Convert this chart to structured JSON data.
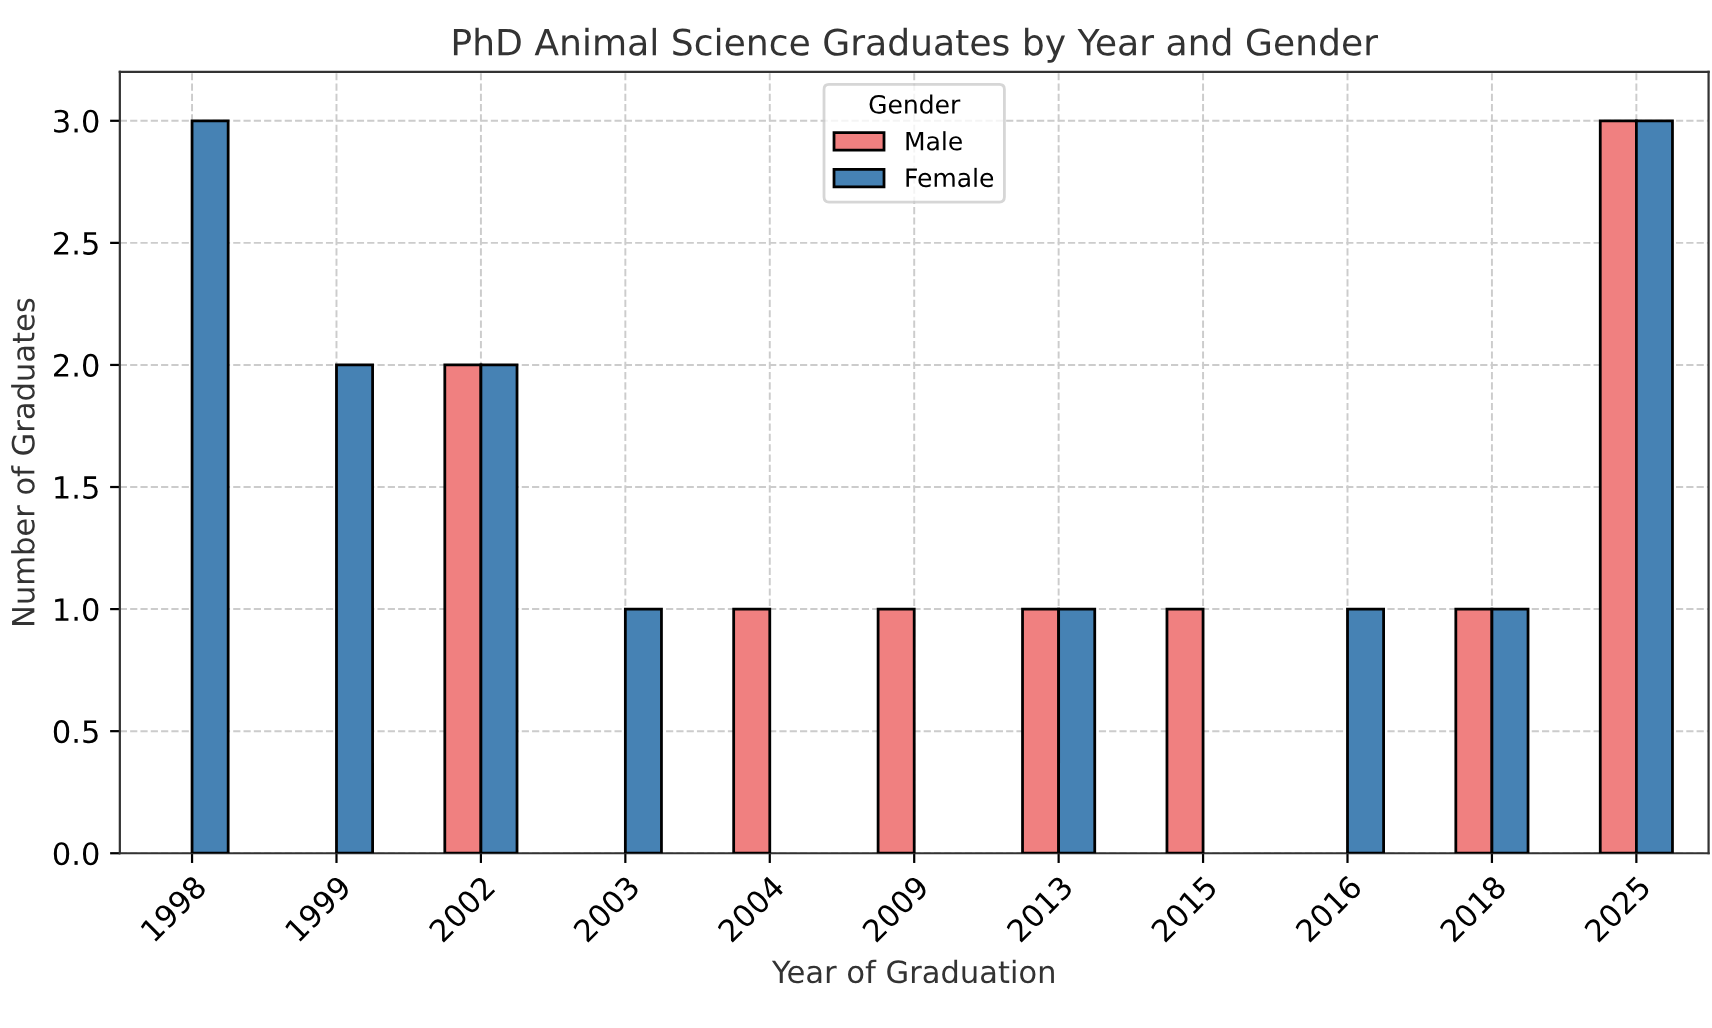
{
  "chart_data": {
    "type": "bar",
    "title": "PhD Animal Science Graduates by Year and Gender",
    "xlabel": "Year of Graduation",
    "ylabel": "Number of Graduates",
    "legend_title": "Gender",
    "categories": [
      "1998",
      "1999",
      "2002",
      "2003",
      "2004",
      "2009",
      "2013",
      "2015",
      "2016",
      "2018",
      "2025"
    ],
    "series": [
      {
        "name": "Male",
        "color": "#f08080",
        "values": [
          null,
          null,
          2,
          null,
          1,
          1,
          1,
          1,
          null,
          1,
          3
        ]
      },
      {
        "name": "Female",
        "color": "#4682b4",
        "values": [
          3,
          2,
          2,
          1,
          null,
          null,
          1,
          null,
          1,
          1,
          3
        ]
      }
    ],
    "ylim": [
      0,
      3.2
    ],
    "yticks": [
      {
        "value": 0,
        "label": "0.0"
      },
      {
        "value": 0.5,
        "label": "0.5"
      },
      {
        "value": 1,
        "label": "1.0"
      },
      {
        "value": 1.5,
        "label": "1.5"
      },
      {
        "value": 2,
        "label": "2.0"
      },
      {
        "value": 2.5,
        "label": "2.5"
      },
      {
        "value": 3,
        "label": "3.0"
      }
    ],
    "grid": true,
    "legend": "top"
  }
}
